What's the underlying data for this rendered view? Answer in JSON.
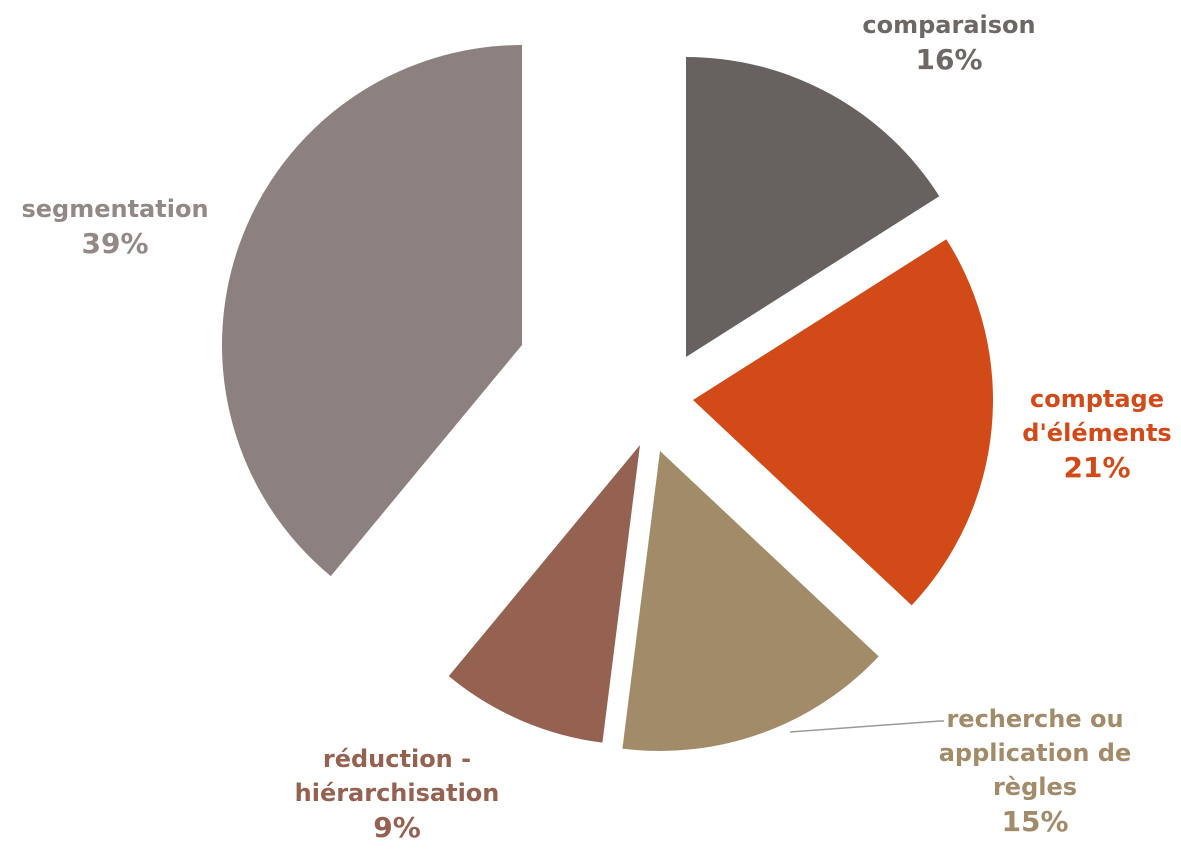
{
  "chart_data": {
    "type": "pie",
    "title": "",
    "categories": [
      "comparaison",
      "comptage d'éléments",
      "recherche ou application de règles",
      "réduction - hiérarchisation",
      "segmentation"
    ],
    "values": [
      16,
      21,
      15,
      9,
      39
    ],
    "value_labels": [
      "16%",
      "21%",
      "15%",
      "9%",
      "39%"
    ],
    "label_lines": [
      [
        "comparaison"
      ],
      [
        "comptage",
        "d'éléments"
      ],
      [
        "recherche ou",
        "application de",
        "règles"
      ],
      [
        "réduction -",
        "hiérarchisation"
      ],
      [
        "segmentation"
      ]
    ],
    "colors": [
      "#67625f",
      "#d24a17",
      "#a28b69",
      "#956251",
      "#8d8180"
    ],
    "label_colors": [
      "#6d6865",
      "#d24a17",
      "#a28b69",
      "#956251",
      "#938886"
    ],
    "exploded": true,
    "start_angle": "12 o'clock, clockwise",
    "legend": "none",
    "leader_line_on": "recherche ou application de règles"
  }
}
